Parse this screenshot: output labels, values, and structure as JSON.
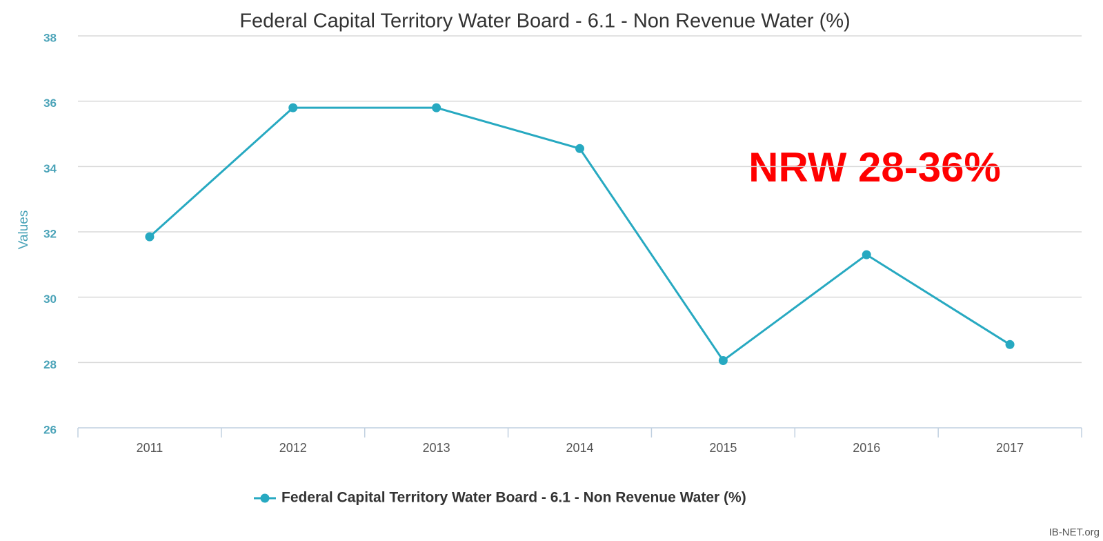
{
  "chart_data": {
    "type": "line",
    "title": "Federal Capital Territory Water Board  - 6.1 - Non Revenue Water (%)",
    "y_label": "Values",
    "annotation": "NRW 28-36%",
    "source": "IB-NET.org",
    "categories": [
      "2011",
      "2012",
      "2013",
      "2014",
      "2015",
      "2016",
      "2017"
    ],
    "series": [
      {
        "name": "Federal Capital Territory Water Board  - 6.1 - Non Revenue Water (%)",
        "color": "#27a9c1",
        "values": [
          31.85,
          35.8,
          35.8,
          34.55,
          28.06,
          31.3,
          28.55
        ]
      }
    ],
    "ylim": [
      26,
      38
    ],
    "yticks": [
      26,
      28,
      30,
      32,
      34,
      36,
      38
    ],
    "grid": true
  }
}
